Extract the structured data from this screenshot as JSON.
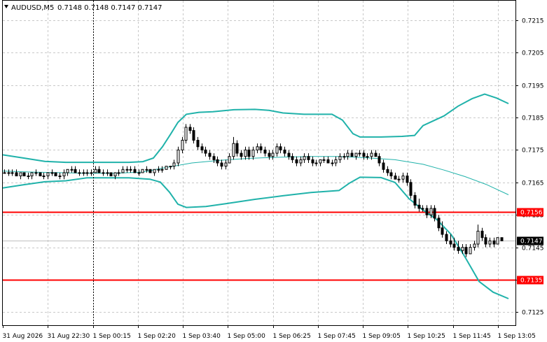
{
  "header": {
    "symbol": "AUDUSD,M5",
    "values": "0.7148 0.7148 0.7147 0.7147",
    "arrow_icon": "triangle-down-icon"
  },
  "colors": {
    "background": "#ffffff",
    "candles": "#000000",
    "bands": "#20b2aa",
    "level_lines": "#ff0000",
    "current_price_line": "#c0c0c0",
    "grid": "#c8c8c8",
    "crosshair": "#000000"
  },
  "chart_data": {
    "type": "candlestick",
    "title": "",
    "ylim": [
      0.7121,
      0.7221
    ],
    "y_ticks": [
      "0.7215",
      "0.7205",
      "0.7195",
      "0.7185",
      "0.7175",
      "0.7165",
      "0.7155",
      "0.7145",
      "0.7135",
      "0.7125"
    ],
    "x_ticks": [
      "31 Aug 2026",
      "31 Aug 22:30",
      "1 Sep 00:15",
      "1 Sep 02:20",
      "1 Sep 03:40",
      "1 Sep 05:00",
      "1 Sep 06:25",
      "1 Sep 07:45",
      "1 Sep 09:05",
      "1 Sep 10:25",
      "1 Sep 11:45",
      "1 Sep 13:05"
    ],
    "grid": true,
    "crosshair_at": "1 Sep 00:15",
    "levels": [
      {
        "label": "0.7156",
        "value": 0.7156
      },
      {
        "label": "0.7135",
        "value": 0.7135
      }
    ],
    "current_price": {
      "label": "0.7147",
      "value": 0.7147
    },
    "bollinger_upper": [
      [
        0,
        0.71735
      ],
      [
        30,
        0.71725
      ],
      [
        60,
        0.71715
      ],
      [
        90,
        0.71712
      ],
      [
        120,
        0.71712
      ],
      [
        150,
        0.71712
      ],
      [
        180,
        0.71712
      ],
      [
        200,
        0.71714
      ],
      [
        215,
        0.71725
      ],
      [
        228,
        0.7176
      ],
      [
        240,
        0.718
      ],
      [
        250,
        0.71835
      ],
      [
        262,
        0.7186
      ],
      [
        280,
        0.71866
      ],
      [
        300,
        0.71868
      ],
      [
        330,
        0.71874
      ],
      [
        360,
        0.71875
      ],
      [
        380,
        0.71872
      ],
      [
        400,
        0.71864
      ],
      [
        430,
        0.7186
      ],
      [
        470,
        0.7186
      ],
      [
        485,
        0.71842
      ],
      [
        500,
        0.718
      ],
      [
        510,
        0.7179
      ],
      [
        540,
        0.7179
      ],
      [
        570,
        0.71792
      ],
      [
        588,
        0.71795
      ],
      [
        600,
        0.71825
      ],
      [
        630,
        0.71855
      ],
      [
        650,
        0.71885
      ],
      [
        670,
        0.71908
      ],
      [
        688,
        0.71922
      ],
      [
        705,
        0.7191
      ],
      [
        722,
        0.71893
      ]
    ],
    "bollinger_middle": [
      [
        0,
        0.71685
      ],
      [
        40,
        0.71682
      ],
      [
        80,
        0.7168
      ],
      [
        120,
        0.71678
      ],
      [
        160,
        0.71678
      ],
      [
        200,
        0.71682
      ],
      [
        230,
        0.71695
      ],
      [
        270,
        0.7171
      ],
      [
        310,
        0.71718
      ],
      [
        350,
        0.71724
      ],
      [
        400,
        0.71728
      ],
      [
        440,
        0.7173
      ],
      [
        480,
        0.7173
      ],
      [
        520,
        0.71726
      ],
      [
        560,
        0.7172
      ],
      [
        600,
        0.71706
      ],
      [
        630,
        0.71688
      ],
      [
        660,
        0.71668
      ],
      [
        690,
        0.71644
      ],
      [
        722,
        0.71612
      ]
    ],
    "bollinger_lower": [
      [
        0,
        0.71633
      ],
      [
        30,
        0.71643
      ],
      [
        60,
        0.71652
      ],
      [
        90,
        0.71655
      ],
      [
        120,
        0.71664
      ],
      [
        140,
        0.71664
      ],
      [
        180,
        0.71664
      ],
      [
        210,
        0.7166
      ],
      [
        225,
        0.71651
      ],
      [
        238,
        0.7162
      ],
      [
        250,
        0.71583
      ],
      [
        262,
        0.71573
      ],
      [
        290,
        0.71576
      ],
      [
        320,
        0.71585
      ],
      [
        360,
        0.71598
      ],
      [
        400,
        0.71609
      ],
      [
        440,
        0.71619
      ],
      [
        480,
        0.71625
      ],
      [
        495,
        0.71648
      ],
      [
        510,
        0.71666
      ],
      [
        540,
        0.71665
      ],
      [
        560,
        0.7165
      ],
      [
        580,
        0.716
      ],
      [
        600,
        0.71565
      ],
      [
        620,
        0.71535
      ],
      [
        640,
        0.7149
      ],
      [
        660,
        0.7142
      ],
      [
        680,
        0.71345
      ],
      [
        700,
        0.71312
      ],
      [
        722,
        0.71292
      ]
    ],
    "candles": [
      [
        0.7168,
        0.7169,
        0.7168,
        0.7168
      ],
      [
        0.7168,
        0.7169,
        0.7167,
        0.7168
      ],
      [
        0.7168,
        0.7169,
        0.7167,
        0.7168
      ],
      [
        0.7168,
        0.7169,
        0.7167,
        0.7167
      ],
      [
        0.7167,
        0.7168,
        0.7166,
        0.7168
      ],
      [
        0.7168,
        0.7168,
        0.7167,
        0.7167
      ],
      [
        0.7167,
        0.7168,
        0.7166,
        0.7167
      ],
      [
        0.7167,
        0.7168,
        0.7166,
        0.7168
      ],
      [
        0.7168,
        0.7169,
        0.7167,
        0.7168
      ],
      [
        0.7168,
        0.7168,
        0.7167,
        0.7167
      ],
      [
        0.7167,
        0.7168,
        0.7166,
        0.7167
      ],
      [
        0.7167,
        0.7168,
        0.7166,
        0.7168
      ],
      [
        0.7168,
        0.7169,
        0.7167,
        0.7168
      ],
      [
        0.7168,
        0.7168,
        0.7167,
        0.7167
      ],
      [
        0.7167,
        0.7168,
        0.7166,
        0.7167
      ],
      [
        0.7167,
        0.7169,
        0.7166,
        0.7168
      ],
      [
        0.7168,
        0.7169,
        0.7167,
        0.7169
      ],
      [
        0.7169,
        0.717,
        0.7168,
        0.7169
      ],
      [
        0.7169,
        0.717,
        0.7168,
        0.7168
      ],
      [
        0.7168,
        0.7169,
        0.7167,
        0.7168
      ],
      [
        0.7168,
        0.7169,
        0.7167,
        0.7168
      ],
      [
        0.7168,
        0.7169,
        0.7167,
        0.7168
      ],
      [
        0.7168,
        0.7169,
        0.7167,
        0.7168
      ],
      [
        0.7168,
        0.717,
        0.7168,
        0.7169
      ],
      [
        0.7169,
        0.717,
        0.7168,
        0.7168
      ],
      [
        0.7168,
        0.7169,
        0.7167,
        0.7168
      ],
      [
        0.7168,
        0.7169,
        0.7167,
        0.7168
      ],
      [
        0.7168,
        0.7168,
        0.7167,
        0.7167
      ],
      [
        0.7167,
        0.7168,
        0.7166,
        0.7168
      ],
      [
        0.7168,
        0.7169,
        0.7167,
        0.7168
      ],
      [
        0.7168,
        0.717,
        0.7168,
        0.7169
      ],
      [
        0.7169,
        0.717,
        0.7168,
        0.7169
      ],
      [
        0.7169,
        0.717,
        0.7168,
        0.7169
      ],
      [
        0.7169,
        0.717,
        0.7168,
        0.7168
      ],
      [
        0.7168,
        0.7169,
        0.7167,
        0.7168
      ],
      [
        0.7168,
        0.7169,
        0.7168,
        0.7169
      ],
      [
        0.7169,
        0.717,
        0.7168,
        0.7169
      ],
      [
        0.7169,
        0.7169,
        0.7168,
        0.7168
      ],
      [
        0.7168,
        0.7169,
        0.7167,
        0.7169
      ],
      [
        0.7169,
        0.717,
        0.7168,
        0.7169
      ],
      [
        0.7169,
        0.717,
        0.7168,
        0.7169
      ],
      [
        0.7169,
        0.717,
        0.7169,
        0.717
      ],
      [
        0.717,
        0.717,
        0.7169,
        0.717
      ],
      [
        0.717,
        0.7172,
        0.7169,
        0.7171
      ],
      [
        0.7171,
        0.7176,
        0.717,
        0.7175
      ],
      [
        0.7175,
        0.7179,
        0.7174,
        0.7178
      ],
      [
        0.7178,
        0.7183,
        0.7177,
        0.7182
      ],
      [
        0.7182,
        0.7183,
        0.718,
        0.7181
      ],
      [
        0.7181,
        0.7182,
        0.7177,
        0.7178
      ],
      [
        0.7178,
        0.7179,
        0.7175,
        0.7176
      ],
      [
        0.7176,
        0.7177,
        0.7174,
        0.7175
      ],
      [
        0.7175,
        0.7176,
        0.7173,
        0.7174
      ],
      [
        0.7174,
        0.7175,
        0.7172,
        0.7173
      ],
      [
        0.7173,
        0.7174,
        0.7171,
        0.7172
      ],
      [
        0.7172,
        0.7173,
        0.717,
        0.7171
      ],
      [
        0.7171,
        0.7172,
        0.7169,
        0.717
      ],
      [
        0.717,
        0.7172,
        0.7169,
        0.7171
      ],
      [
        0.7171,
        0.7174,
        0.7171,
        0.7173
      ],
      [
        0.7173,
        0.7179,
        0.7172,
        0.7177
      ],
      [
        0.7177,
        0.7178,
        0.7173,
        0.7174
      ],
      [
        0.7174,
        0.7175,
        0.7172,
        0.7173
      ],
      [
        0.7173,
        0.7176,
        0.7172,
        0.7175
      ],
      [
        0.7175,
        0.7176,
        0.7172,
        0.7173
      ],
      [
        0.7173,
        0.7176,
        0.7172,
        0.7175
      ],
      [
        0.7175,
        0.7177,
        0.7174,
        0.7176
      ],
      [
        0.7176,
        0.7177,
        0.7174,
        0.7175
      ],
      [
        0.7175,
        0.7176,
        0.7173,
        0.7174
      ],
      [
        0.7174,
        0.7175,
        0.7172,
        0.7173
      ],
      [
        0.7173,
        0.7175,
        0.7172,
        0.7174
      ],
      [
        0.7174,
        0.7177,
        0.7173,
        0.7176
      ],
      [
        0.7176,
        0.7177,
        0.7174,
        0.7175
      ],
      [
        0.7175,
        0.7176,
        0.7173,
        0.7174
      ],
      [
        0.7174,
        0.7175,
        0.7172,
        0.7173
      ],
      [
        0.7173,
        0.7174,
        0.7171,
        0.7172
      ],
      [
        0.7172,
        0.7173,
        0.717,
        0.7171
      ],
      [
        0.7171,
        0.7173,
        0.717,
        0.7172
      ],
      [
        0.7172,
        0.7174,
        0.7171,
        0.7173
      ],
      [
        0.7173,
        0.7174,
        0.7171,
        0.7172
      ],
      [
        0.7172,
        0.7173,
        0.717,
        0.7171
      ],
      [
        0.7171,
        0.7172,
        0.717,
        0.7171
      ],
      [
        0.7171,
        0.7172,
        0.717,
        0.7172
      ],
      [
        0.7172,
        0.7173,
        0.7171,
        0.7172
      ],
      [
        0.7172,
        0.7173,
        0.7171,
        0.7171
      ],
      [
        0.7171,
        0.7172,
        0.717,
        0.7171
      ],
      [
        0.7171,
        0.7173,
        0.717,
        0.7172
      ],
      [
        0.7172,
        0.7174,
        0.7171,
        0.7173
      ],
      [
        0.7173,
        0.7174,
        0.7172,
        0.7173
      ],
      [
        0.7173,
        0.7175,
        0.7172,
        0.7174
      ],
      [
        0.7174,
        0.7175,
        0.7173,
        0.7173
      ],
      [
        0.7173,
        0.7174,
        0.7172,
        0.7174
      ],
      [
        0.7174,
        0.7175,
        0.7173,
        0.7174
      ],
      [
        0.7174,
        0.7175,
        0.7172,
        0.7173
      ],
      [
        0.7173,
        0.7174,
        0.7172,
        0.7173
      ],
      [
        0.7173,
        0.7175,
        0.7172,
        0.7174
      ],
      [
        0.7174,
        0.7175,
        0.7173,
        0.7173
      ],
      [
        0.7173,
        0.7174,
        0.717,
        0.7171
      ],
      [
        0.7171,
        0.7172,
        0.7168,
        0.7169
      ],
      [
        0.7169,
        0.717,
        0.7167,
        0.7168
      ],
      [
        0.7168,
        0.7169,
        0.7166,
        0.7167
      ],
      [
        0.7167,
        0.7168,
        0.7166,
        0.7166
      ],
      [
        0.7166,
        0.7167,
        0.7165,
        0.7166
      ],
      [
        0.7166,
        0.7168,
        0.7165,
        0.7167
      ],
      [
        0.7167,
        0.7168,
        0.7164,
        0.7165
      ],
      [
        0.7165,
        0.7166,
        0.716,
        0.7161
      ],
      [
        0.7161,
        0.7162,
        0.7157,
        0.7158
      ],
      [
        0.7158,
        0.716,
        0.7156,
        0.7157
      ],
      [
        0.7157,
        0.7158,
        0.7156,
        0.7157
      ],
      [
        0.7157,
        0.7158,
        0.7154,
        0.7155
      ],
      [
        0.7155,
        0.7158,
        0.7154,
        0.7157
      ],
      [
        0.7157,
        0.7158,
        0.7153,
        0.7154
      ],
      [
        0.7154,
        0.7155,
        0.715,
        0.7151
      ],
      [
        0.7151,
        0.7153,
        0.7148,
        0.7149
      ],
      [
        0.7149,
        0.715,
        0.7146,
        0.7147
      ],
      [
        0.7147,
        0.7149,
        0.7145,
        0.7146
      ],
      [
        0.7146,
        0.7148,
        0.7144,
        0.7145
      ],
      [
        0.7145,
        0.7147,
        0.7143,
        0.7144
      ],
      [
        0.7144,
        0.7146,
        0.7143,
        0.7145
      ],
      [
        0.7145,
        0.7146,
        0.7142,
        0.7143
      ],
      [
        0.7143,
        0.7146,
        0.7143,
        0.7145
      ],
      [
        0.7145,
        0.7147,
        0.7144,
        0.7146
      ],
      [
        0.7146,
        0.7152,
        0.7145,
        0.715
      ],
      [
        0.715,
        0.7151,
        0.7147,
        0.7148
      ],
      [
        0.7148,
        0.7149,
        0.7145,
        0.7146
      ],
      [
        0.7146,
        0.7148,
        0.7145,
        0.7147
      ],
      [
        0.7147,
        0.7148,
        0.7145,
        0.7146
      ],
      [
        0.7146,
        0.7148,
        0.7146,
        0.7148
      ],
      [
        0.7148,
        0.7148,
        0.7147,
        0.7147
      ]
    ]
  }
}
